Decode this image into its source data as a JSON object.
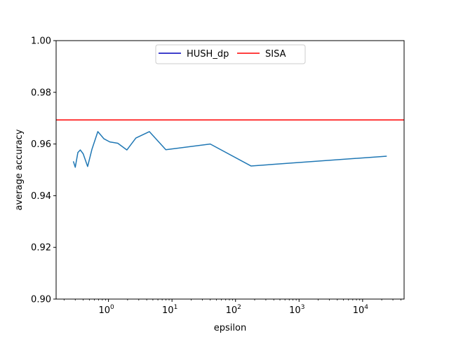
{
  "chart_data": {
    "type": "line",
    "xlabel": "epsilon",
    "ylabel": "average accuracy",
    "xscale": "log",
    "xlim": [
      0.15,
      45000
    ],
    "ylim": [
      0.9,
      1.0
    ],
    "grid": false,
    "legend": {
      "placement": "upper-center",
      "columns": 2
    },
    "x_ticks": [
      {
        "value": 1,
        "base": "10",
        "exp": "0"
      },
      {
        "value": 10,
        "base": "10",
        "exp": "1"
      },
      {
        "value": 100,
        "base": "10",
        "exp": "2"
      },
      {
        "value": 1000,
        "base": "10",
        "exp": "3"
      },
      {
        "value": 10000,
        "base": "10",
        "exp": "4"
      }
    ],
    "y_ticks": [
      {
        "value": 0.9,
        "label": "0.90"
      },
      {
        "value": 0.92,
        "label": "0.92"
      },
      {
        "value": 0.94,
        "label": "0.94"
      },
      {
        "value": 0.96,
        "label": "0.96"
      },
      {
        "value": 0.98,
        "label": "0.98"
      },
      {
        "value": 1.0,
        "label": "1.00"
      }
    ],
    "series": [
      {
        "name": "HUSH_dp",
        "legend_color": "#0000bb",
        "color": "#1f77b4",
        "x": [
          0.28,
          0.3,
          0.33,
          0.36,
          0.4,
          0.47,
          0.55,
          0.68,
          0.85,
          1.05,
          1.4,
          1.95,
          2.7,
          4.4,
          8.0,
          40.0,
          175.0,
          24000.0
        ],
        "y": [
          0.9533,
          0.951,
          0.9567,
          0.9577,
          0.9562,
          0.9513,
          0.958,
          0.9648,
          0.962,
          0.9608,
          0.9603,
          0.9577,
          0.9623,
          0.9648,
          0.9578,
          0.96,
          0.9515,
          0.9553
        ]
      },
      {
        "name": "SISA",
        "legend_color": "#ff0000",
        "color": "#ff0000",
        "type": "hline",
        "y": 0.9693
      }
    ]
  }
}
